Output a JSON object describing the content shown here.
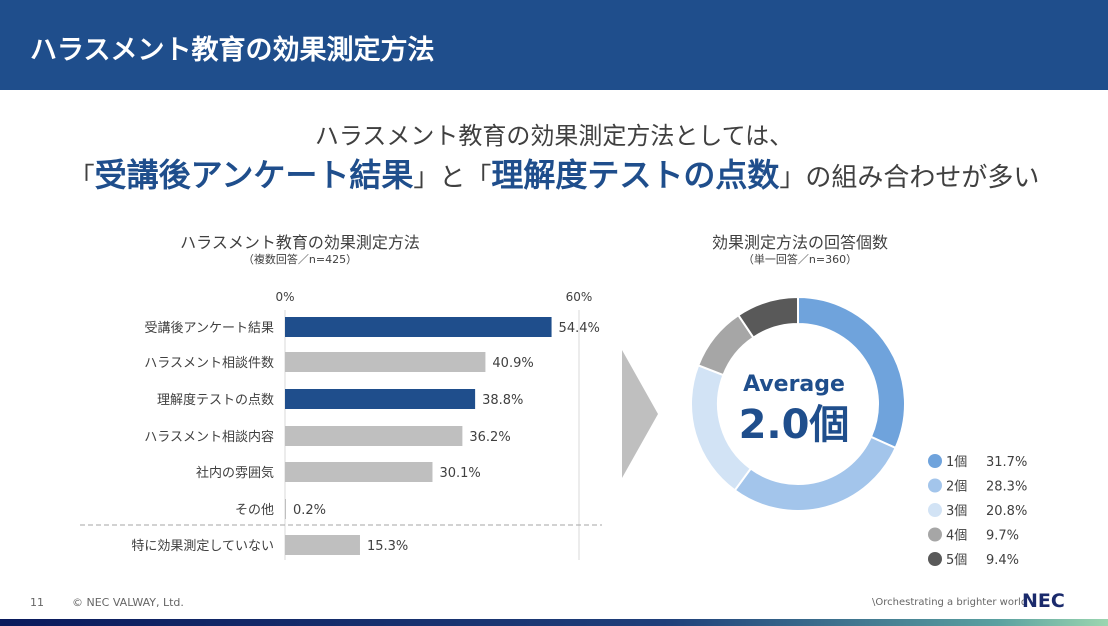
{
  "header": {
    "title": "ハラスメント教育の効果測定方法"
  },
  "headline": {
    "line1": "ハラスメント教育の効果測定方法としては、",
    "q1o": "「",
    "h1": "受講後アンケート結果",
    "q1c": "」と「",
    "h2": "理解度テストの点数",
    "q2c": "」の組み合わせが多い"
  },
  "chart_data": [
    {
      "type": "bar",
      "orientation": "horizontal",
      "title": "ハラスメント教育の効果測定方法",
      "subtitle": "（複数回答／n=425）",
      "categories": [
        "受講後アンケート結果",
        "ハラスメント相談件数",
        "理解度テストの点数",
        "ハラスメント相談内容",
        "社内の雰囲気",
        "その他",
        "特に効果測定していない"
      ],
      "values": [
        54.4,
        40.9,
        38.8,
        36.2,
        30.1,
        0.2,
        15.3
      ],
      "labels": [
        "54.4%",
        "40.9%",
        "38.8%",
        "36.2%",
        "30.1%",
        "0.2%",
        "15.3%"
      ],
      "highlight": [
        true,
        false,
        true,
        false,
        false,
        false,
        false
      ],
      "xticks": [
        "0%",
        "60%"
      ],
      "xlim": [
        0,
        60
      ],
      "colors": {
        "highlight": "#1f4e8c",
        "normal": "#bfbfbf"
      }
    },
    {
      "type": "pie",
      "donut": true,
      "title": "効果測定方法の回答個数",
      "subtitle": "（単一回答／n=360）",
      "center_label": "Average",
      "center_value": "2.0個",
      "slices": [
        {
          "label": "1個",
          "value": 31.7,
          "text": "31.7%",
          "color": "#6fa3dc"
        },
        {
          "label": "2個",
          "value": 28.3,
          "text": "28.3%",
          "color": "#a3c5eb"
        },
        {
          "label": "3個",
          "value": 20.8,
          "text": "20.8%",
          "color": "#d2e3f5"
        },
        {
          "label": "4個",
          "value": 9.7,
          "text": "9.7%",
          "color": "#a6a6a6"
        },
        {
          "label": "5個",
          "value": 9.4,
          "text": "9.4%",
          "color": "#595959"
        }
      ],
      "legend": "bottom-right"
    }
  ],
  "footer": {
    "page": "11",
    "copyright": "© NEC VALWAY, Ltd.",
    "tagline": "\\Orchestrating a brighter world",
    "logo": "NEC"
  }
}
